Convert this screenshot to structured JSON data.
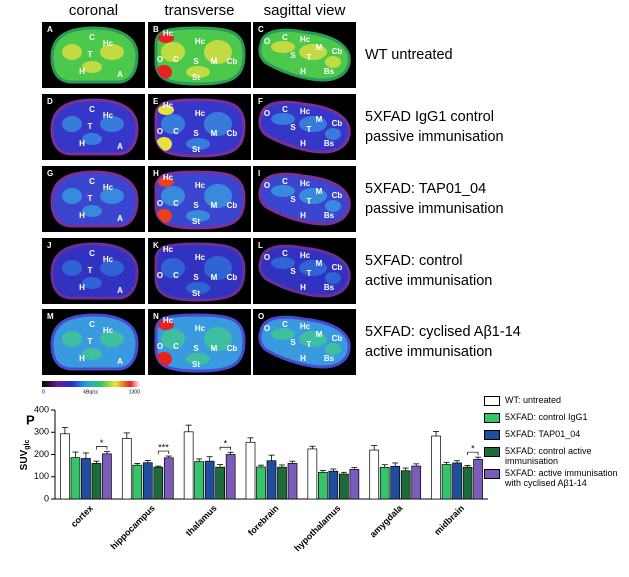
{
  "headers": [
    "coronal",
    "transverse",
    "sagittal view"
  ],
  "panels": [
    {
      "letter": "A",
      "labels": [
        "C",
        "Hc",
        "T",
        "H",
        "A"
      ]
    },
    {
      "letter": "B",
      "labels": [
        "Hc",
        "Hc",
        "O",
        "C",
        "S",
        "M",
        "Cb",
        "St"
      ]
    },
    {
      "letter": "C",
      "labels": [
        "O",
        "C",
        "Hc",
        "M",
        "Cb",
        "S",
        "T",
        "H",
        "Bs"
      ]
    },
    {
      "letter": "D",
      "labels": [
        "C",
        "Hc",
        "T",
        "H",
        "A"
      ]
    },
    {
      "letter": "E",
      "labels": [
        "Hc",
        "Hc",
        "O",
        "C",
        "S",
        "M",
        "Cb",
        "St"
      ]
    },
    {
      "letter": "F",
      "labels": [
        "O",
        "C",
        "Hc",
        "M",
        "Cb",
        "S",
        "T",
        "H",
        "Bs"
      ]
    },
    {
      "letter": "G",
      "labels": [
        "C",
        "Hc",
        "T",
        "H",
        "A"
      ]
    },
    {
      "letter": "H",
      "labels": [
        "Hc",
        "Hc",
        "O",
        "C",
        "S",
        "M",
        "Cb",
        "St"
      ]
    },
    {
      "letter": "I",
      "labels": [
        "O",
        "C",
        "Hc",
        "M",
        "Cb",
        "S",
        "T",
        "H",
        "Bs"
      ]
    },
    {
      "letter": "J",
      "labels": [
        "C",
        "Hc",
        "T",
        "H",
        "A"
      ]
    },
    {
      "letter": "K",
      "labels": [
        "Hc",
        "Hc",
        "O",
        "C",
        "S",
        "M",
        "Cb",
        "St"
      ]
    },
    {
      "letter": "L",
      "labels": [
        "O",
        "C",
        "Hc",
        "M",
        "Cb",
        "S",
        "T",
        "H",
        "Bs"
      ]
    },
    {
      "letter": "M",
      "labels": [
        "C",
        "Hc",
        "T",
        "H",
        "A"
      ]
    },
    {
      "letter": "N",
      "labels": [
        "Hc",
        "Hc",
        "O",
        "C",
        "S",
        "M",
        "Cb",
        "St"
      ]
    },
    {
      "letter": "O",
      "labels": [
        "O",
        "C",
        "Hc",
        "M",
        "Cb",
        "S",
        "T",
        "H",
        "Bs"
      ]
    }
  ],
  "row_labels": [
    [
      "WT untreated"
    ],
    [
      "5XFAD IgG1 control",
      "passive immunisation"
    ],
    [
      "5XFAD: TAP01_04",
      "passive immunisation"
    ],
    [
      "5XFAD: control",
      "active immunisation"
    ],
    [
      "5XFAD: cyclised Aβ1-14",
      "active immunisation"
    ]
  ],
  "colorbar": {
    "min": "0",
    "unit": "kBq/cc",
    "max": "1300"
  },
  "chart_data": {
    "type": "bar",
    "panel_letter": "P",
    "ylabel": "SUV",
    "ylabel_sub": "glc",
    "categories": [
      "cortex",
      "hippocampus",
      "thalamus",
      "forebrain",
      "hypothalamus",
      "amygdala",
      "midbrain"
    ],
    "series": [
      {
        "name": "WT: untreated",
        "color": "#ffffff",
        "values": [
          293,
          272,
          302,
          255,
          225,
          220,
          283
        ],
        "errors": [
          28,
          25,
          30,
          20,
          12,
          20,
          20
        ]
      },
      {
        "name": "5XFAD: control IgG1",
        "color": "#35c46a",
        "values": [
          186,
          152,
          168,
          144,
          120,
          142,
          155
        ],
        "errors": [
          25,
          8,
          12,
          8,
          8,
          12,
          10
        ]
      },
      {
        "name": "5XFAD: TAP01_04",
        "color": "#1f4e9e",
        "values": [
          182,
          163,
          170,
          172,
          125,
          147,
          162
        ],
        "errors": [
          25,
          10,
          20,
          25,
          10,
          15,
          10
        ]
      },
      {
        "name": "5XFAD: control active immunisation",
        "color": "#1d6a3a",
        "values": [
          160,
          143,
          143,
          143,
          112,
          127,
          143
        ],
        "errors": [
          10,
          5,
          12,
          10,
          8,
          12,
          8
        ]
      },
      {
        "name": "5XFAD: active immunisation with cyclised Aβ1-14",
        "color": "#7b5cb8",
        "values": [
          203,
          185,
          200,
          160,
          133,
          148,
          178
        ],
        "errors": [
          10,
          8,
          10,
          10,
          8,
          10,
          10
        ]
      }
    ],
    "significance": [
      "*",
      "***",
      "*",
      null,
      null,
      null,
      "*"
    ],
    "ylim": [
      0,
      400
    ],
    "yticks": [
      0,
      100,
      200,
      300,
      400
    ]
  }
}
